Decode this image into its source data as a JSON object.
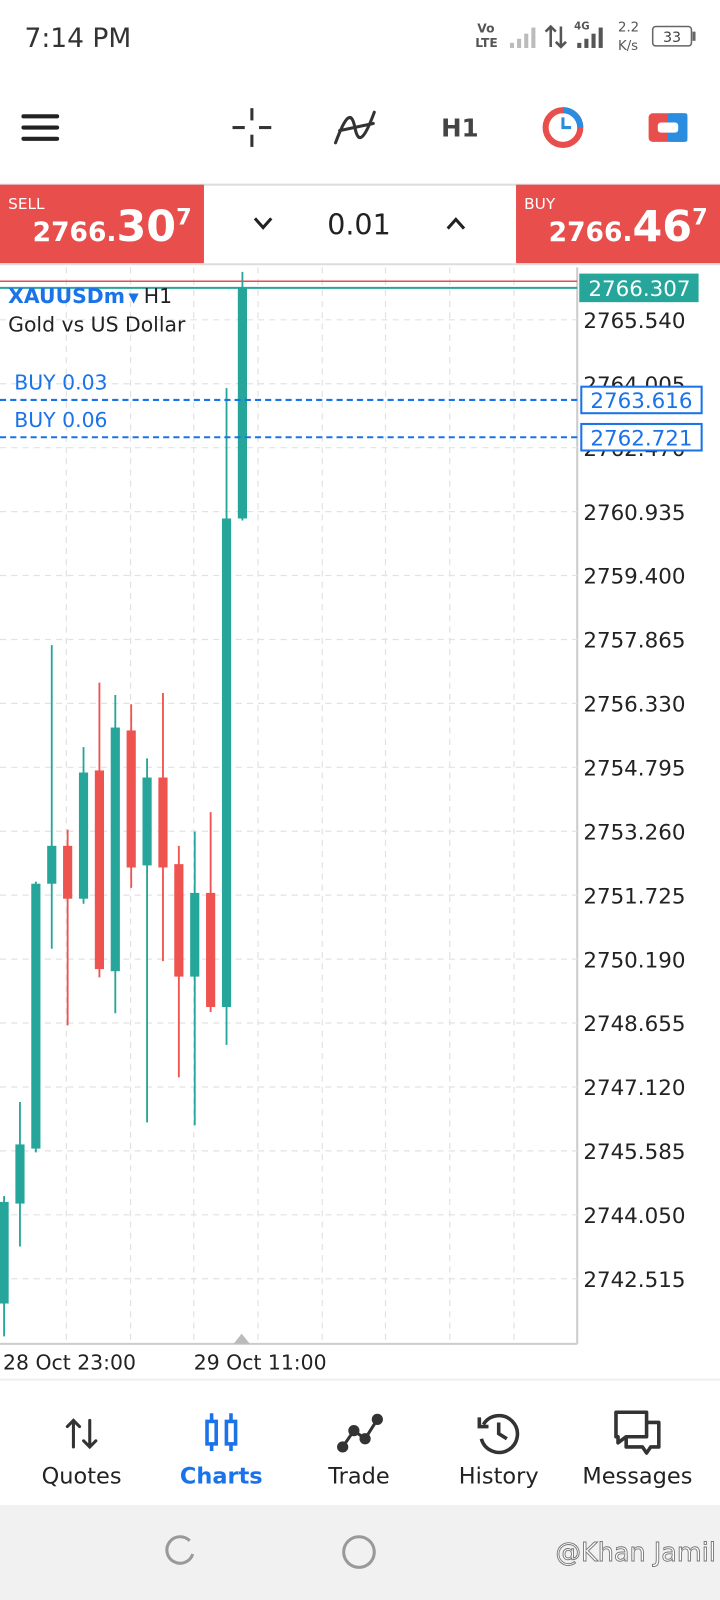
{
  "status_bar": {
    "time": "7:14 PM",
    "volte_top": "Vo",
    "volte_bottom": "LTE",
    "network": "4G",
    "speed_value": "2.2",
    "speed_unit": "K/s",
    "battery": "33"
  },
  "toolbar": {
    "timeframe": "H1"
  },
  "trade_panel": {
    "sell_label": "SELL",
    "sell_price": {
      "prefix": "2766.",
      "big": "30",
      "sup": "7"
    },
    "volume": "0.01",
    "buy_label": "BUY",
    "buy_price": {
      "prefix": "2766.",
      "big": "46",
      "sup": "7"
    }
  },
  "chart": {
    "type": "candlestick",
    "symbol": "XAUUSDm",
    "timeframe": "H1",
    "description": "Gold vs US Dollar",
    "ylim": [
      2741.0,
      2766.8
    ],
    "yticks": [
      {
        "value": 2765.54,
        "label": "2765.540"
      },
      2764.005,
      {
        "value": 2762.47,
        "label": "2762.470"
      },
      2760.935,
      {
        "value": 2759.4,
        "label": "2759.400"
      },
      2757.865,
      {
        "value": 2756.33,
        "label": "2756.330"
      },
      2754.795,
      {
        "value": 2753.26,
        "label": "2753.260"
      },
      2751.725,
      {
        "value": 2750.19,
        "label": "2750.190"
      },
      2748.655,
      {
        "value": 2747.12,
        "label": "2747.120"
      },
      2745.585,
      {
        "value": 2744.05,
        "label": "2744.050"
      },
      2742.515
    ],
    "times": [
      "28 Oct 23:00",
      null,
      null,
      null,
      null,
      null,
      null,
      null,
      null,
      null,
      null,
      null,
      "29 Oct 11:00",
      null,
      null,
      null
    ],
    "candles": {
      "open": [
        2741.92,
        2744.32,
        2745.64,
        2752.0,
        2752.91,
        2751.64,
        2754.72,
        2749.9,
        2755.68,
        2752.44,
        2754.55,
        2752.47,
        2749.77,
        2751.78,
        2749.04,
        2760.77
      ],
      "high": [
        2744.5,
        2746.76,
        2752.05,
        2757.73,
        2753.3,
        2755.28,
        2756.83,
        2756.53,
        2756.31,
        2755.01,
        2756.58,
        2752.91,
        2753.25,
        2753.72,
        2763.9,
        2766.69
      ],
      "low": [
        2741.13,
        2743.29,
        2745.55,
        2750.44,
        2748.6,
        2751.52,
        2749.75,
        2748.89,
        2751.9,
        2746.27,
        2750.14,
        2747.35,
        2746.2,
        2748.92,
        2748.13,
        2760.72
      ],
      "close": [
        2744.36,
        2745.74,
        2752.0,
        2752.91,
        2751.64,
        2754.67,
        2749.95,
        2755.75,
        2752.39,
        2754.55,
        2752.39,
        2749.77,
        2751.78,
        2749.04,
        2760.77,
        2766.307
      ]
    },
    "up_color": "#26a69a",
    "down_color": "#ef5350",
    "bid": 2766.307,
    "ask": 2766.467,
    "orders": [
      {
        "label": "BUY 0.03",
        "price": 2763.616
      },
      {
        "label": "BUY 0.06",
        "price": 2762.721
      }
    ],
    "grid": true
  },
  "nav": {
    "items": [
      "Quotes",
      "Charts",
      "Trade",
      "History",
      "Messages"
    ],
    "active": 1
  },
  "watermark": "@Khan Jamil"
}
